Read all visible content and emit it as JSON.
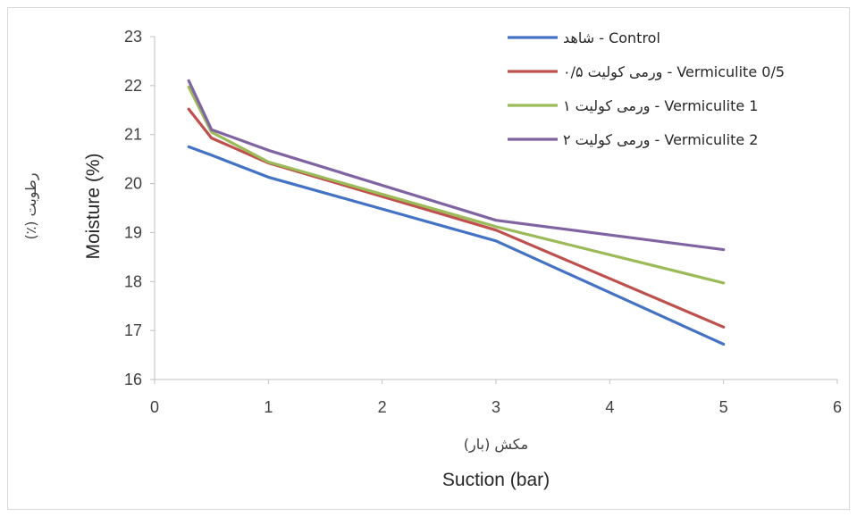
{
  "chart_data": {
    "type": "line",
    "title": "",
    "xlabel": "Suction (bar)",
    "xlabel_fa": "مکش (بار)",
    "ylabel": "Moisture (%)",
    "ylabel_fa": "رطوبت (٪)",
    "xlim": [
      0,
      6
    ],
    "ylim": [
      16,
      23
    ],
    "xticks": [
      "0",
      "1",
      "2",
      "3",
      "4",
      "5",
      "6"
    ],
    "yticks": [
      "16",
      "17",
      "18",
      "19",
      "20",
      "21",
      "22",
      "23"
    ],
    "grid": false,
    "legend_position": "top-right",
    "x": [
      0.3,
      0.5,
      1,
      3,
      5
    ],
    "series": [
      {
        "name": "شاهد - Control",
        "color": "#4472C4",
        "values": [
          20.75,
          20.58,
          20.13,
          18.83,
          16.72
        ]
      },
      {
        "name": "ورمی کولیت ۰/۵ - Vermiculite 0/5",
        "color": "#C0504D",
        "values": [
          21.52,
          20.93,
          20.42,
          19.05,
          17.07
        ]
      },
      {
        "name": "ورمی کولیت ۱ - Vermiculite 1",
        "color": "#9BBB59",
        "values": [
          21.97,
          21.05,
          20.44,
          19.12,
          17.97
        ]
      },
      {
        "name": "ورمی کولیت ۲ - Vermiculite 2",
        "color": "#8064A2",
        "values": [
          22.1,
          21.1,
          20.68,
          19.25,
          18.65
        ]
      }
    ]
  }
}
